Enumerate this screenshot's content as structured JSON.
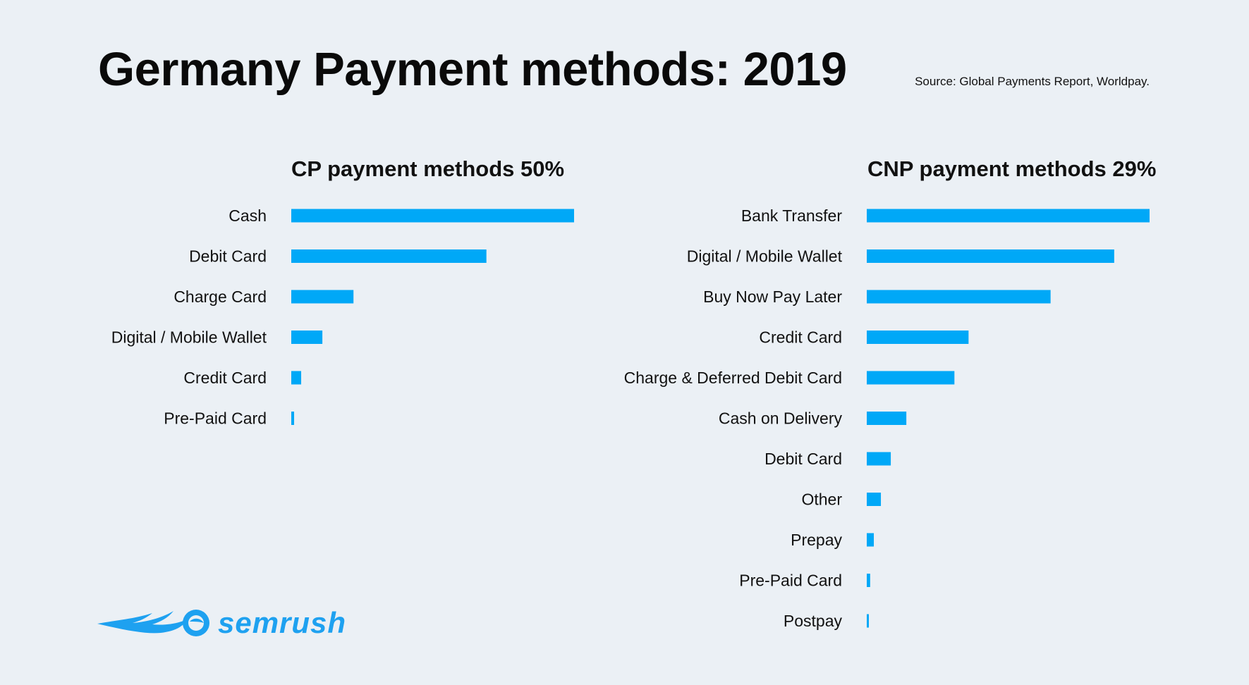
{
  "title": "Germany Payment methods: 2019",
  "source": "Source: Global Payments Report, Worldpay.",
  "brand": {
    "name": "semrush",
    "color": "#1ea1f0"
  },
  "colors": {
    "bar": "#00a8f7",
    "background": "#ebf0f5",
    "text": "#111111"
  },
  "chart_data": [
    {
      "type": "bar",
      "orientation": "horizontal",
      "title": "CP payment methods 50%",
      "categories": [
        "Cash",
        "Debit Card",
        "Charge Card",
        "Digital / Mobile Wallet",
        "Credit Card",
        "Pre-Paid Card"
      ],
      "values": [
        100,
        69,
        22,
        11,
        3.5,
        1
      ],
      "unit": "relative share (longest bar = 100)",
      "grid": false,
      "legend": "none"
    },
    {
      "type": "bar",
      "orientation": "horizontal",
      "title": "CNP payment methods 29%",
      "categories": [
        "Bank Transfer",
        "Digital / Mobile Wallet",
        "Buy Now Pay Later",
        "Credit Card",
        "Charge & Deferred Debit Card",
        "Cash on Delivery",
        "Debit Card",
        "Other",
        "Prepay",
        "Pre-Paid Card",
        "Postpay"
      ],
      "values": [
        100,
        87.5,
        65,
        36,
        31,
        14,
        8.5,
        5,
        2.5,
        1.2,
        0.5
      ],
      "unit": "relative share (longest bar = 100)",
      "grid": false,
      "legend": "none"
    }
  ]
}
